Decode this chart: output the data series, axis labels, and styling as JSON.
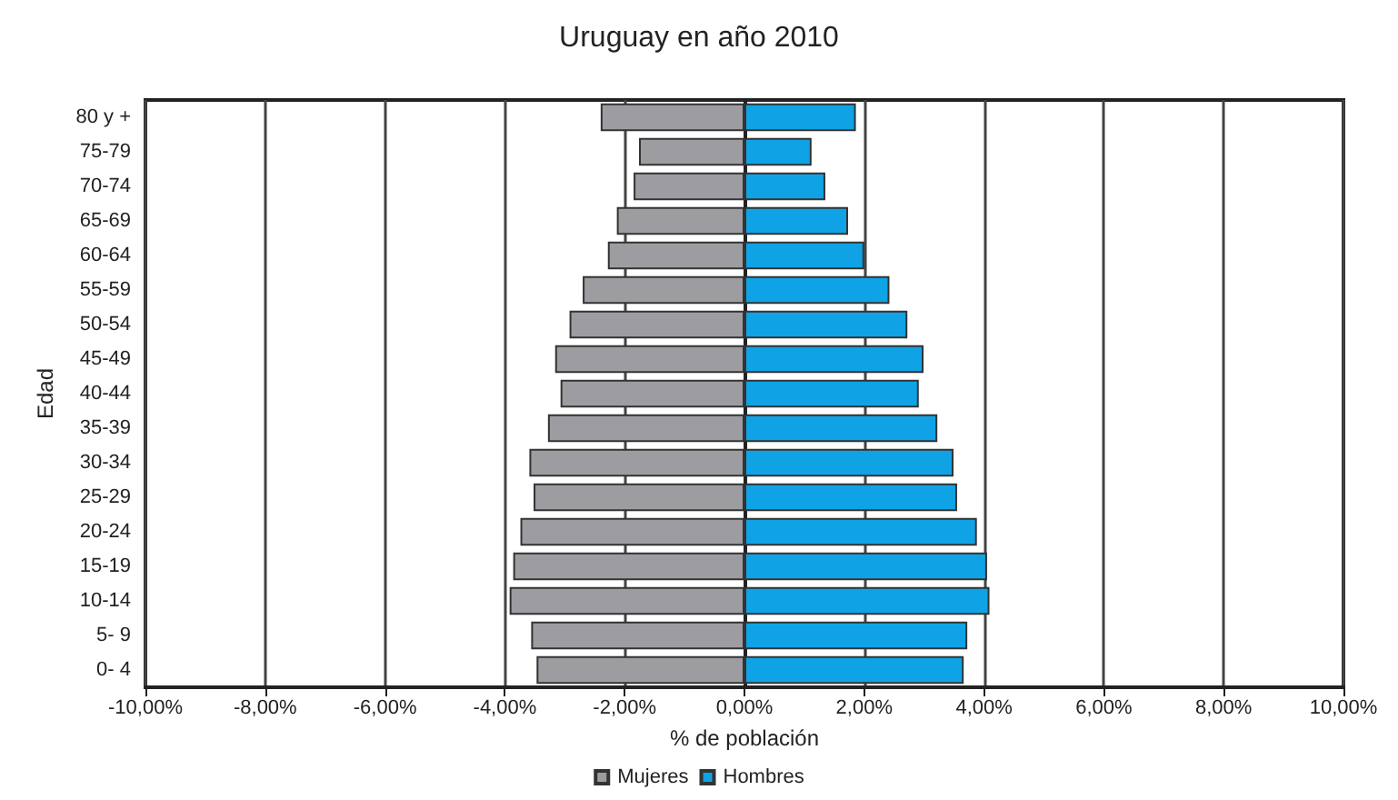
{
  "chart_data": {
    "type": "bar",
    "orientation": "horizontal",
    "title": "Uruguay en año 2010",
    "xlabel": "% de población",
    "ylabel": "Edad",
    "categories": [
      "80 y +",
      "75-79",
      "70-74",
      "65-69",
      "60-64",
      "55-59",
      "50-54",
      "45-49",
      "40-44",
      "35-39",
      "30-34",
      "25-29",
      "20-24",
      "15-19",
      "10-14",
      "5- 9",
      "0- 4"
    ],
    "series": [
      {
        "name": "Mujeres",
        "color": "#9d9ca0",
        "values": [
          -2.4,
          -1.76,
          -1.85,
          -2.13,
          -2.28,
          -2.7,
          -2.92,
          -3.16,
          -3.07,
          -3.28,
          -3.59,
          -3.52,
          -3.74,
          -3.86,
          -3.92,
          -3.56,
          -3.47
        ]
      },
      {
        "name": "Hombres",
        "color": "#0fa3e6",
        "values": [
          1.86,
          1.12,
          1.35,
          1.73,
          2.0,
          2.42,
          2.72,
          2.99,
          2.91,
          3.22,
          3.49,
          3.55,
          3.88,
          4.05,
          4.09,
          3.72,
          3.66
        ]
      }
    ],
    "xlim": [
      -10,
      10
    ],
    "xticks": [
      {
        "value": -10,
        "label": "-10,00%"
      },
      {
        "value": -8,
        "label": "-8,00%"
      },
      {
        "value": -6,
        "label": "-6,00%"
      },
      {
        "value": -4,
        "label": "-4,00%"
      },
      {
        "value": -2,
        "label": "-2,00%"
      },
      {
        "value": 0,
        "label": "0,00%"
      },
      {
        "value": 2,
        "label": "2,00%"
      },
      {
        "value": 4,
        "label": "4,00%"
      },
      {
        "value": 6,
        "label": "6,00%"
      },
      {
        "value": 8,
        "label": "8,00%"
      },
      {
        "value": 10,
        "label": "10,00%"
      }
    ],
    "stacked": true,
    "grid": "x",
    "legend": "bottom"
  }
}
